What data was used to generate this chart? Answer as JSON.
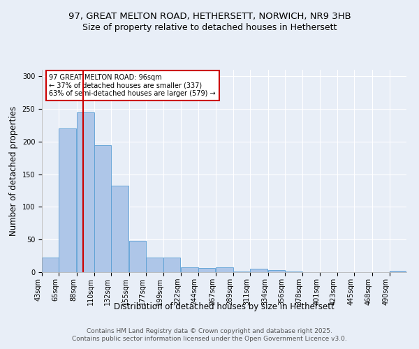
{
  "title_line1": "97, GREAT MELTON ROAD, HETHERSETT, NORWICH, NR9 3HB",
  "title_line2": "Size of property relative to detached houses in Hethersett",
  "xlabel": "Distribution of detached houses by size in Hethersett",
  "ylabel": "Number of detached properties",
  "bar_color": "#aec6e8",
  "bar_edge_color": "#5a9fd4",
  "bin_labels": [
    "43sqm",
    "65sqm",
    "88sqm",
    "110sqm",
    "132sqm",
    "155sqm",
    "177sqm",
    "199sqm",
    "222sqm",
    "244sqm",
    "267sqm",
    "289sqm",
    "311sqm",
    "334sqm",
    "356sqm",
    "378sqm",
    "401sqm",
    "423sqm",
    "445sqm",
    "468sqm",
    "490sqm"
  ],
  "bin_edges": [
    43,
    65,
    88,
    110,
    132,
    155,
    177,
    199,
    222,
    244,
    267,
    289,
    311,
    334,
    356,
    378,
    401,
    423,
    445,
    468,
    490
  ],
  "bar_heights": [
    22,
    220,
    245,
    195,
    133,
    48,
    22,
    22,
    7,
    6,
    7,
    1,
    5,
    3,
    1,
    0,
    0,
    0,
    0,
    0,
    2
  ],
  "property_line_x": 96,
  "property_line_color": "#cc0000",
  "annotation_text": "97 GREAT MELTON ROAD: 96sqm\n← 37% of detached houses are smaller (337)\n63% of semi-detached houses are larger (579) →",
  "annotation_box_color": "#ffffff",
  "annotation_box_edge_color": "#cc0000",
  "ylim": [
    0,
    310
  ],
  "yticks": [
    0,
    50,
    100,
    150,
    200,
    250,
    300
  ],
  "background_color": "#e8eef7",
  "grid_color": "#ffffff",
  "footnote_line1": "Contains HM Land Registry data © Crown copyright and database right 2025.",
  "footnote_line2": "Contains public sector information licensed under the Open Government Licence v3.0.",
  "title_fontsize": 9.5,
  "subtitle_fontsize": 9,
  "axis_label_fontsize": 8.5,
  "tick_fontsize": 7,
  "annotation_fontsize": 7,
  "footnote_fontsize": 6.5
}
